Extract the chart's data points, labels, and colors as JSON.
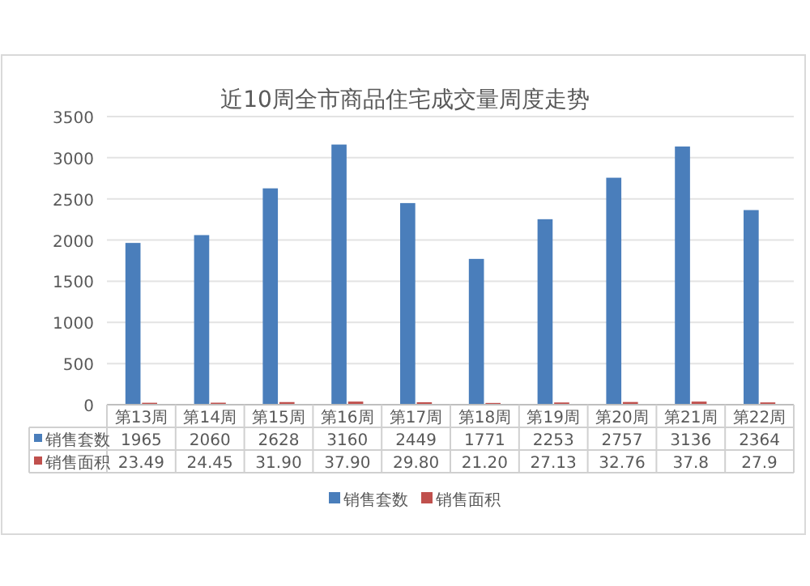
{
  "chart_data": {
    "type": "bar",
    "title": "近10周全市商品住宅成交量周度走势",
    "categories": [
      "第13周",
      "第14周",
      "第15周",
      "第16周",
      "第17周",
      "第18周",
      "第19周",
      "第20周",
      "第21周",
      "第22周"
    ],
    "series": [
      {
        "name": "销售套数",
        "color": "#4a7ebb",
        "values": [
          1965,
          2060,
          2628,
          3160,
          2449,
          1771,
          2253,
          2757,
          3136,
          2364
        ],
        "value_labels": [
          "1965",
          "2060",
          "2628",
          "3160",
          "2449",
          "1771",
          "2253",
          "2757",
          "3136",
          "2364"
        ]
      },
      {
        "name": "销售面积",
        "color": "#c0504d",
        "values": [
          23.49,
          24.45,
          31.9,
          37.9,
          29.8,
          21.2,
          27.13,
          32.76,
          37.8,
          27.9
        ],
        "value_labels": [
          "23.49",
          "24.45",
          "31.90",
          "37.90",
          "29.80",
          "21.20",
          "27.13",
          "32.76",
          "37.8",
          "27.9"
        ]
      }
    ],
    "ylim": [
      0,
      3500
    ],
    "yticks": [
      0,
      500,
      1000,
      1500,
      2000,
      2500,
      3000,
      3500
    ],
    "grid": "y",
    "legend": "bottom"
  }
}
